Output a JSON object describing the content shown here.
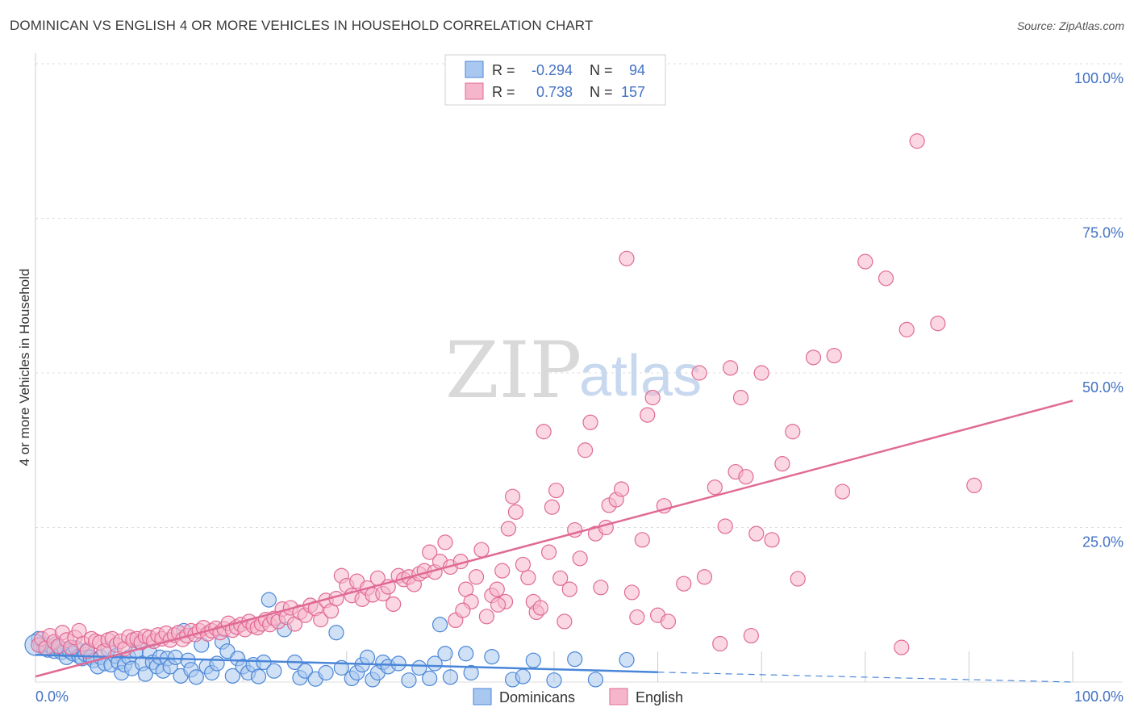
{
  "title": "DOMINICAN VS ENGLISH 4 OR MORE VEHICLES IN HOUSEHOLD CORRELATION CHART",
  "source": "Source: ZipAtlas.com",
  "watermark": {
    "zip": "ZIP",
    "atlas": "atlas"
  },
  "colors": {
    "blue": "#4a86d8",
    "blue_fill": "#a9c8ef",
    "pink": "#e06a95",
    "pink_fill": "#f5b6cb",
    "grid": "#dddddd",
    "tick": "#4472c4"
  },
  "legend": {
    "rows": [
      {
        "r_label": "R =",
        "r_value": "-0.294",
        "n_label": "N =",
        "n_value": "94"
      },
      {
        "r_label": "R =",
        "r_value": "0.738",
        "n_label": "N =",
        "n_value": "157"
      }
    ]
  },
  "bottom_legend": {
    "dominicans": "Dominicans",
    "english": "English"
  },
  "chart_data": {
    "type": "scatter",
    "title": "DOMINICAN VS ENGLISH 4 OR MORE VEHICLES IN HOUSEHOLD CORRELATION CHART",
    "xlabel": "",
    "ylabel": "4 or more Vehicles in Household",
    "xlim": [
      0,
      100
    ],
    "ylim": [
      0,
      100
    ],
    "x_tick_labels": [
      "0.0%",
      "100.0%"
    ],
    "y_tick_labels": [
      "25.0%",
      "50.0%",
      "75.0%",
      "100.0%"
    ],
    "y_ticks": [
      25,
      50,
      75,
      100
    ],
    "series": [
      {
        "name": "Dominicans",
        "r": -0.294,
        "n": 94,
        "trend": {
          "x0": 0,
          "y0": 4.4,
          "x1": 60,
          "y1": 1.6,
          "dash_to": 100,
          "dash_y": 0.0
        },
        "points": [
          [
            0.3,
            7.0
          ],
          [
            0.5,
            6.0
          ],
          [
            0.8,
            5.5
          ],
          [
            1.0,
            6.0
          ],
          [
            1.2,
            5.2
          ],
          [
            1.5,
            5.8
          ],
          [
            1.8,
            5.0
          ],
          [
            2.0,
            6.2
          ],
          [
            2.3,
            5.6
          ],
          [
            2.5,
            4.8
          ],
          [
            2.8,
            5.3
          ],
          [
            3.0,
            4.0
          ],
          [
            3.3,
            5.0
          ],
          [
            3.6,
            4.6
          ],
          [
            3.9,
            5.5
          ],
          [
            4.2,
            4.2
          ],
          [
            4.5,
            3.8
          ],
          [
            4.8,
            4.5
          ],
          [
            5.0,
            5.2
          ],
          [
            5.3,
            4.0
          ],
          [
            5.6,
            3.5
          ],
          [
            6.0,
            2.5
          ],
          [
            6.3,
            4.0
          ],
          [
            6.7,
            3.0
          ],
          [
            7.0,
            5.3
          ],
          [
            7.3,
            2.8
          ],
          [
            7.7,
            4.2
          ],
          [
            8.0,
            3.2
          ],
          [
            8.3,
            1.5
          ],
          [
            8.6,
            2.8
          ],
          [
            9.0,
            4.0
          ],
          [
            9.3,
            2.2
          ],
          [
            9.7,
            5.0
          ],
          [
            10.0,
            6.5
          ],
          [
            10.3,
            3.0
          ],
          [
            10.6,
            1.3
          ],
          [
            11.0,
            4.8
          ],
          [
            11.3,
            3.2
          ],
          [
            11.7,
            2.5
          ],
          [
            12.0,
            4.0
          ],
          [
            12.3,
            1.8
          ],
          [
            12.7,
            3.8
          ],
          [
            13.0,
            2.5
          ],
          [
            13.5,
            4.0
          ],
          [
            14.0,
            1.0
          ],
          [
            14.3,
            8.3
          ],
          [
            14.7,
            3.5
          ],
          [
            15.0,
            2.0
          ],
          [
            15.5,
            0.8
          ],
          [
            16.0,
            6.0
          ],
          [
            16.5,
            2.5
          ],
          [
            17.0,
            1.5
          ],
          [
            17.5,
            3.0
          ],
          [
            18.0,
            6.5
          ],
          [
            18.5,
            5.0
          ],
          [
            19.0,
            1.0
          ],
          [
            19.5,
            3.8
          ],
          [
            20.0,
            2.5
          ],
          [
            20.5,
            1.5
          ],
          [
            21.0,
            2.8
          ],
          [
            21.5,
            0.9
          ],
          [
            22.0,
            3.2
          ],
          [
            22.5,
            13.3
          ],
          [
            23.0,
            1.8
          ],
          [
            24.0,
            8.5
          ],
          [
            25.0,
            3.2
          ],
          [
            25.5,
            0.7
          ],
          [
            26.0,
            1.8
          ],
          [
            27.0,
            0.5
          ],
          [
            28.0,
            1.5
          ],
          [
            29.0,
            8.0
          ],
          [
            29.5,
            2.3
          ],
          [
            30.5,
            0.6
          ],
          [
            31.0,
            1.5
          ],
          [
            31.5,
            2.8
          ],
          [
            32.0,
            4.0
          ],
          [
            32.5,
            0.4
          ],
          [
            33.0,
            1.5
          ],
          [
            33.5,
            3.2
          ],
          [
            34.0,
            2.5
          ],
          [
            35.0,
            3.0
          ],
          [
            36.0,
            0.3
          ],
          [
            37.0,
            2.3
          ],
          [
            38.0,
            0.6
          ],
          [
            38.5,
            3.0
          ],
          [
            39.5,
            4.6
          ],
          [
            39.0,
            9.3
          ],
          [
            40.0,
            0.8
          ],
          [
            41.5,
            4.6
          ],
          [
            42.0,
            1.5
          ],
          [
            44.0,
            4.1
          ],
          [
            46.0,
            0.4
          ],
          [
            47.0,
            0.9
          ],
          [
            48.0,
            3.5
          ],
          [
            50.0,
            0.3
          ],
          [
            52.0,
            3.7
          ],
          [
            54.0,
            0.4
          ],
          [
            57.0,
            3.6
          ]
        ]
      },
      {
        "name": "English",
        "r": 0.738,
        "n": 157,
        "trend": {
          "x0": 0,
          "y0": 0.9,
          "x1": 100,
          "y1": 45.5
        },
        "points": [
          [
            0.3,
            6.0
          ],
          [
            0.6,
            7.0
          ],
          [
            1.0,
            5.5
          ],
          [
            1.4,
            7.5
          ],
          [
            1.8,
            6.5
          ],
          [
            2.2,
            5.8
          ],
          [
            2.6,
            8.0
          ],
          [
            3.0,
            6.8
          ],
          [
            3.4,
            5.6
          ],
          [
            3.8,
            7.2
          ],
          [
            4.2,
            8.3
          ],
          [
            4.6,
            6.2
          ],
          [
            5.0,
            5.0
          ],
          [
            5.4,
            7.0
          ],
          [
            5.8,
            6.6
          ],
          [
            6.2,
            6.4
          ],
          [
            6.6,
            5.0
          ],
          [
            7.0,
            6.8
          ],
          [
            7.4,
            7.0
          ],
          [
            7.8,
            6.0
          ],
          [
            8.2,
            6.6
          ],
          [
            8.6,
            5.4
          ],
          [
            9.0,
            7.3
          ],
          [
            9.4,
            6.8
          ],
          [
            9.8,
            7.0
          ],
          [
            10.2,
            6.4
          ],
          [
            10.6,
            7.4
          ],
          [
            11.0,
            7.2
          ],
          [
            11.4,
            6.6
          ],
          [
            11.8,
            7.6
          ],
          [
            12.2,
            7.0
          ],
          [
            12.6,
            7.9
          ],
          [
            13.0,
            6.8
          ],
          [
            13.4,
            7.6
          ],
          [
            13.8,
            8.0
          ],
          [
            14.2,
            6.9
          ],
          [
            14.6,
            7.5
          ],
          [
            15.0,
            8.3
          ],
          [
            15.4,
            7.7
          ],
          [
            15.8,
            8.3
          ],
          [
            16.2,
            8.8
          ],
          [
            16.6,
            7.8
          ],
          [
            17.0,
            8.3
          ],
          [
            17.4,
            8.7
          ],
          [
            17.8,
            8.0
          ],
          [
            18.2,
            8.6
          ],
          [
            18.6,
            9.5
          ],
          [
            19.0,
            8.4
          ],
          [
            19.4,
            8.9
          ],
          [
            19.8,
            9.3
          ],
          [
            20.2,
            8.5
          ],
          [
            20.6,
            9.8
          ],
          [
            21.0,
            9.1
          ],
          [
            21.4,
            8.8
          ],
          [
            21.8,
            9.4
          ],
          [
            22.2,
            10.1
          ],
          [
            22.6,
            9.3
          ],
          [
            23.0,
            10.3
          ],
          [
            23.4,
            9.8
          ],
          [
            23.8,
            11.8
          ],
          [
            24.2,
            10.5
          ],
          [
            24.6,
            12.0
          ],
          [
            25.0,
            9.4
          ],
          [
            25.5,
            11.3
          ],
          [
            26.0,
            10.8
          ],
          [
            26.5,
            12.4
          ],
          [
            27.0,
            11.9
          ],
          [
            27.5,
            10.1
          ],
          [
            28.0,
            13.2
          ],
          [
            28.5,
            11.5
          ],
          [
            29.0,
            13.5
          ],
          [
            29.5,
            17.2
          ],
          [
            30.0,
            15.6
          ],
          [
            30.5,
            14.0
          ],
          [
            31.0,
            16.3
          ],
          [
            31.5,
            13.4
          ],
          [
            32.0,
            15.2
          ],
          [
            32.5,
            14.1
          ],
          [
            33.0,
            16.8
          ],
          [
            33.5,
            14.3
          ],
          [
            34.0,
            15.4
          ],
          [
            34.5,
            12.6
          ],
          [
            35.0,
            17.2
          ],
          [
            35.5,
            16.6
          ],
          [
            36.0,
            17.0
          ],
          [
            36.5,
            15.8
          ],
          [
            37.0,
            17.5
          ],
          [
            37.5,
            18.0
          ],
          [
            38.0,
            21.0
          ],
          [
            38.5,
            17.8
          ],
          [
            39.0,
            19.5
          ],
          [
            39.5,
            22.6
          ],
          [
            40.0,
            18.6
          ],
          [
            40.5,
            10.0
          ],
          [
            41.0,
            19.5
          ],
          [
            41.5,
            15.0
          ],
          [
            42.0,
            13.0
          ],
          [
            42.5,
            17.0
          ],
          [
            43.0,
            21.4
          ],
          [
            43.5,
            10.6
          ],
          [
            44.0,
            14.0
          ],
          [
            44.5,
            15.0
          ],
          [
            45.0,
            18.0
          ],
          [
            45.3,
            13.0
          ],
          [
            45.6,
            24.8
          ],
          [
            46.0,
            30.0
          ],
          [
            46.3,
            27.5
          ],
          [
            47.0,
            19.0
          ],
          [
            47.5,
            16.9
          ],
          [
            48.0,
            13.0
          ],
          [
            48.3,
            11.3
          ],
          [
            48.7,
            12.0
          ],
          [
            49.0,
            40.5
          ],
          [
            49.5,
            21.0
          ],
          [
            49.8,
            28.3
          ],
          [
            50.2,
            31.0
          ],
          [
            50.6,
            16.8
          ],
          [
            51.0,
            9.8
          ],
          [
            51.5,
            15.0
          ],
          [
            52.0,
            24.6
          ],
          [
            52.5,
            20.0
          ],
          [
            53.0,
            37.5
          ],
          [
            53.5,
            42.0
          ],
          [
            54.0,
            24.0
          ],
          [
            54.5,
            15.3
          ],
          [
            55.0,
            25.0
          ],
          [
            55.3,
            28.6
          ],
          [
            56.0,
            29.5
          ],
          [
            56.5,
            31.2
          ],
          [
            57.0,
            68.5
          ],
          [
            57.5,
            14.5
          ],
          [
            58.0,
            10.5
          ],
          [
            58.5,
            23.0
          ],
          [
            59.0,
            43.2
          ],
          [
            59.5,
            46.0
          ],
          [
            60.0,
            10.8
          ],
          [
            60.6,
            28.5
          ],
          [
            61.0,
            9.8
          ],
          [
            62.5,
            15.9
          ],
          [
            64.0,
            50.0
          ],
          [
            64.5,
            17.0
          ],
          [
            65.5,
            31.5
          ],
          [
            66.0,
            6.2
          ],
          [
            66.5,
            25.2
          ],
          [
            67.0,
            50.8
          ],
          [
            67.5,
            34.0
          ],
          [
            68.0,
            46.0
          ],
          [
            68.5,
            33.2
          ],
          [
            69.0,
            7.5
          ],
          [
            69.5,
            24.0
          ],
          [
            70.0,
            50.0
          ],
          [
            71.0,
            23.0
          ],
          [
            72.0,
            35.3
          ],
          [
            73.0,
            40.5
          ],
          [
            73.5,
            16.7
          ],
          [
            75.0,
            52.5
          ],
          [
            77.0,
            52.8
          ],
          [
            77.8,
            30.8
          ],
          [
            80.0,
            68.0
          ],
          [
            82.0,
            65.3
          ],
          [
            83.5,
            5.6
          ],
          [
            84.0,
            57.0
          ],
          [
            85.0,
            87.5
          ],
          [
            87.0,
            58.0
          ],
          [
            90.5,
            31.8
          ],
          [
            44.6,
            12.5
          ],
          [
            41.2,
            11.6
          ]
        ]
      }
    ]
  }
}
